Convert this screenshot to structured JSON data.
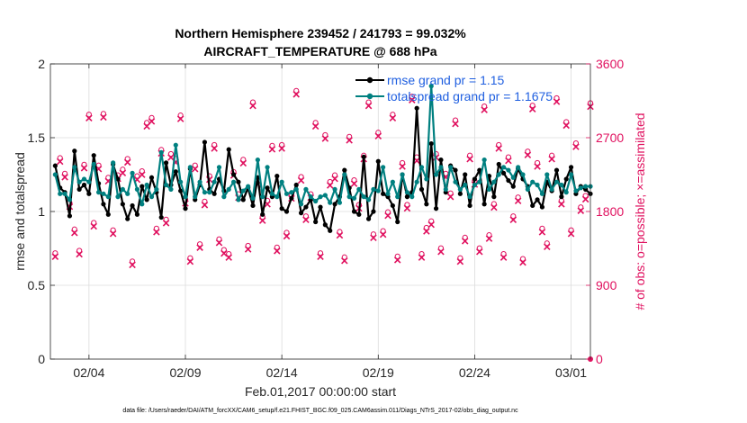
{
  "chart_data": {
    "type": "line",
    "title_line1": "Northern Hemisphere 239452 / 241793 = 99.032%",
    "title_line2": "AIRCRAFT_TEMPERATURE @ 688 hPa",
    "xlabel": "Feb.01,2017 00:00:00 start",
    "ylabel_left": "rmse and totalspread",
    "ylabel_right": "# of obs: o=possible; ×=assimilated",
    "footnote": "data file: /Users/raeder/DAI/ATM_forcXX/CAM6_setup/f.e21.FHIST_BGC.f09_025.CAM6assim.011/Diags_NTrS_2017-02/obs_diag_output.nc",
    "xlim": [
      1.0,
      29.0
    ],
    "xticks": [
      3,
      8,
      13,
      18,
      23,
      28
    ],
    "xtick_labels": [
      "02/04",
      "02/09",
      "02/14",
      "02/19",
      "02/24",
      "03/01"
    ],
    "ylim_left": [
      0,
      2
    ],
    "yticks_left": [
      0,
      0.5,
      1,
      1.5,
      2
    ],
    "ytick_labels_left": [
      "0",
      "0.5",
      "1",
      "1.5",
      "2"
    ],
    "ylim_right": [
      0,
      3600
    ],
    "yticks_right": [
      0,
      900,
      1800,
      2700,
      3600
    ],
    "ytick_labels_right": [
      "0",
      "900",
      "1800",
      "2700",
      "3600"
    ],
    "series": [
      {
        "name": "rmse grand pr = 1.15",
        "color": "#000000",
        "x": [
          1.25,
          1.5,
          1.75,
          2.0,
          2.25,
          2.5,
          2.75,
          3.0,
          3.25,
          3.5,
          3.75,
          4.0,
          4.25,
          4.5,
          4.75,
          5.0,
          5.25,
          5.5,
          5.75,
          6.0,
          6.25,
          6.5,
          6.75,
          7.0,
          7.25,
          7.5,
          7.75,
          8.0,
          8.25,
          8.5,
          8.75,
          9.0,
          9.25,
          9.5,
          9.75,
          10.0,
          10.25,
          10.5,
          10.75,
          11.0,
          11.25,
          11.5,
          11.75,
          12.0,
          12.25,
          12.5,
          12.75,
          13.0,
          13.25,
          13.5,
          13.75,
          14.0,
          14.25,
          14.5,
          14.75,
          15.0,
          15.25,
          15.5,
          15.75,
          16.0,
          16.25,
          16.5,
          16.75,
          17.0,
          17.25,
          17.5,
          17.75,
          18.0,
          18.25,
          18.5,
          18.75,
          19.0,
          19.25,
          19.5,
          19.75,
          20.0,
          20.25,
          20.5,
          20.75,
          21.0,
          21.25,
          21.5,
          21.75,
          22.0,
          22.25,
          22.5,
          22.75,
          23.0,
          23.25,
          23.5,
          23.75,
          24.0,
          24.25,
          24.5,
          24.75,
          25.0,
          25.25,
          25.5,
          25.75,
          26.0,
          26.25,
          26.5,
          26.75,
          27.0,
          27.25,
          27.5,
          27.75,
          28.0,
          28.25,
          28.5,
          28.75,
          29.0
        ],
        "values": [
          1.31,
          1.16,
          1.13,
          0.97,
          1.41,
          1.15,
          1.18,
          1.12,
          1.38,
          1.19,
          1.05,
          0.98,
          1.32,
          1.22,
          1.05,
          0.95,
          1.04,
          0.98,
          1.17,
          1.08,
          1.23,
          1.13,
          0.96,
          1.33,
          1.18,
          1.27,
          1.14,
          1.02,
          1.29,
          1.08,
          1.18,
          1.47,
          1.15,
          1.12,
          1.22,
          1.14,
          1.42,
          1.25,
          1.2,
          1.08,
          1.16,
          1.04,
          1.23,
          0.98,
          1.16,
          1.1,
          1.24,
          1.02,
          1.0,
          1.09,
          1.18,
          0.99,
          1.03,
          1.08,
          0.93,
          1.03,
          0.91,
          0.87,
          1.05,
          1.1,
          1.28,
          1.16,
          1.0,
          0.98,
          1.37,
          0.95,
          1.0,
          1.34,
          1.12,
          1.1,
          1.04,
          0.93,
          1.25,
          1.1,
          1.13,
          1.7,
          1.15,
          1.05,
          1.46,
          1.02,
          1.35,
          1.13,
          1.31,
          1.28,
          1.12,
          1.25,
          1.04,
          1.22,
          1.28,
          1.05,
          1.24,
          1.1,
          1.32,
          1.26,
          1.21,
          1.17,
          1.29,
          1.22,
          1.17,
          1.04,
          1.08,
          1.03,
          1.2,
          1.14,
          1.28,
          1.1,
          1.22,
          1.3,
          1.12,
          1.17,
          1.15,
          1.12
        ]
      },
      {
        "name": "totalspread grand pr = 1.1675",
        "color": "#008080",
        "x": [
          1.25,
          1.5,
          1.75,
          2.0,
          2.25,
          2.5,
          2.75,
          3.0,
          3.25,
          3.5,
          3.75,
          4.0,
          4.25,
          4.5,
          4.75,
          5.0,
          5.25,
          5.5,
          5.75,
          6.0,
          6.25,
          6.5,
          6.75,
          7.0,
          7.25,
          7.5,
          7.75,
          8.0,
          8.25,
          8.5,
          8.75,
          9.0,
          9.25,
          9.5,
          9.75,
          10.0,
          10.25,
          10.5,
          10.75,
          11.0,
          11.25,
          11.5,
          11.75,
          12.0,
          12.25,
          12.5,
          12.75,
          13.0,
          13.25,
          13.5,
          13.75,
          14.0,
          14.25,
          14.5,
          14.75,
          15.0,
          15.25,
          15.5,
          15.75,
          16.0,
          16.25,
          16.5,
          16.75,
          17.0,
          17.25,
          17.5,
          17.75,
          18.0,
          18.25,
          18.5,
          18.75,
          19.0,
          19.25,
          19.5,
          19.75,
          20.0,
          20.25,
          20.5,
          20.75,
          21.0,
          21.25,
          21.5,
          21.75,
          22.0,
          22.25,
          22.5,
          22.75,
          23.0,
          23.25,
          23.5,
          23.75,
          24.0,
          24.25,
          24.5,
          24.75,
          25.0,
          25.25,
          25.5,
          25.75,
          26.0,
          26.25,
          26.5,
          26.75,
          27.0,
          27.25,
          27.5,
          27.75,
          28.0,
          28.25,
          28.5,
          28.75,
          29.0
        ],
        "values": [
          1.25,
          1.12,
          1.12,
          1.08,
          1.3,
          1.2,
          1.22,
          1.2,
          1.32,
          1.13,
          1.12,
          1.1,
          1.33,
          1.1,
          1.15,
          1.12,
          1.26,
          1.15,
          1.05,
          1.18,
          1.1,
          1.15,
          1.4,
          1.18,
          1.15,
          1.45,
          1.2,
          1.1,
          1.3,
          1.1,
          1.2,
          1.13,
          1.13,
          1.2,
          1.3,
          1.1,
          1.15,
          1.2,
          1.08,
          1.14,
          1.17,
          1.09,
          1.35,
          1.1,
          1.3,
          1.12,
          1.1,
          1.2,
          1.12,
          1.13,
          1.15,
          1.05,
          1.15,
          1.1,
          1.07,
          1.1,
          1.11,
          1.06,
          1.15,
          1.06,
          1.25,
          1.1,
          1.09,
          1.15,
          1.1,
          1.08,
          1.15,
          1.14,
          1.3,
          1.12,
          1.2,
          1.1,
          1.25,
          1.13,
          1.1,
          1.2,
          1.3,
          1.22,
          1.85,
          1.25,
          1.3,
          1.15,
          1.3,
          1.2,
          1.15,
          1.18,
          1.1,
          1.18,
          1.2,
          1.35,
          1.15,
          1.2,
          1.25,
          1.3,
          1.28,
          1.23,
          1.3,
          1.25,
          1.15,
          1.2,
          1.18,
          1.12,
          1.25,
          1.15,
          1.2,
          1.18,
          1.13,
          1.25,
          1.14,
          1.16,
          1.17,
          1.17
        ]
      }
    ],
    "obs_counts": {
      "color": "#e0115f",
      "x": [
        1.25,
        1.5,
        1.75,
        2.0,
        2.25,
        2.5,
        2.75,
        3.0,
        3.25,
        3.5,
        3.75,
        4.0,
        4.25,
        4.5,
        4.75,
        5.0,
        5.25,
        5.5,
        5.75,
        6.0,
        6.25,
        6.5,
        6.75,
        7.0,
        7.25,
        7.5,
        7.75,
        8.0,
        8.25,
        8.5,
        8.75,
        9.0,
        9.25,
        9.5,
        9.75,
        10.0,
        10.25,
        10.5,
        10.75,
        11.0,
        11.25,
        11.5,
        11.75,
        12.0,
        12.25,
        12.5,
        12.75,
        13.0,
        13.25,
        13.5,
        13.75,
        14.0,
        14.25,
        14.5,
        14.75,
        15.0,
        15.25,
        15.5,
        15.75,
        16.0,
        16.25,
        16.5,
        16.75,
        17.0,
        17.25,
        17.5,
        17.75,
        18.0,
        18.25,
        18.5,
        18.75,
        19.0,
        19.25,
        19.5,
        19.75,
        20.0,
        20.25,
        20.5,
        20.75,
        21.0,
        21.25,
        21.5,
        21.75,
        22.0,
        22.25,
        22.5,
        22.75,
        23.0,
        23.25,
        23.5,
        23.75,
        24.0,
        24.25,
        24.5,
        24.75,
        25.0,
        25.25,
        25.5,
        25.75,
        26.0,
        26.25,
        26.5,
        26.75,
        27.0,
        27.25,
        27.5,
        27.75,
        28.0,
        28.25,
        28.5,
        28.75,
        29.0
      ],
      "possible": [
        1260,
        2420,
        2230,
        1870,
        1550,
        1290,
        2340,
        2950,
        1630,
        2330,
        2960,
        2180,
        1540,
        2210,
        2280,
        2410,
        1160,
        2200,
        2260,
        2850,
        2910,
        1560,
        2520,
        1670,
        2470,
        2410,
        2940,
        1910,
        1200,
        2330,
        1370,
        1890,
        2200,
        2580,
        1430,
        1300,
        1250,
        2250,
        1980,
        2400,
        1350,
        3100,
        2140,
        1700,
        1900,
        2570,
        1330,
        2580,
        1510,
        1970,
        3240,
        2190,
        1710,
        1980,
        2850,
        1260,
        2700,
        2130,
        2210,
        1520,
        1210,
        2680,
        2150,
        1850,
        2450,
        3100,
        1490,
        2730,
        1530,
        1760,
        2950,
        1220,
        2360,
        1850,
        3170,
        2430,
        1250,
        1570,
        1650,
        2470,
        1320,
        2230,
        1990,
        2880,
        1200,
        1450,
        2450,
        2140,
        1320,
        3050,
        1480,
        1860,
        2580,
        1250,
        2430,
        1710,
        1940,
        1190,
        2500,
        3060,
        2360,
        1560,
        1380,
        2450,
        3150,
        1900,
        2860,
        1540,
        2600,
        1820,
        1960,
        3090
      ]
    }
  }
}
